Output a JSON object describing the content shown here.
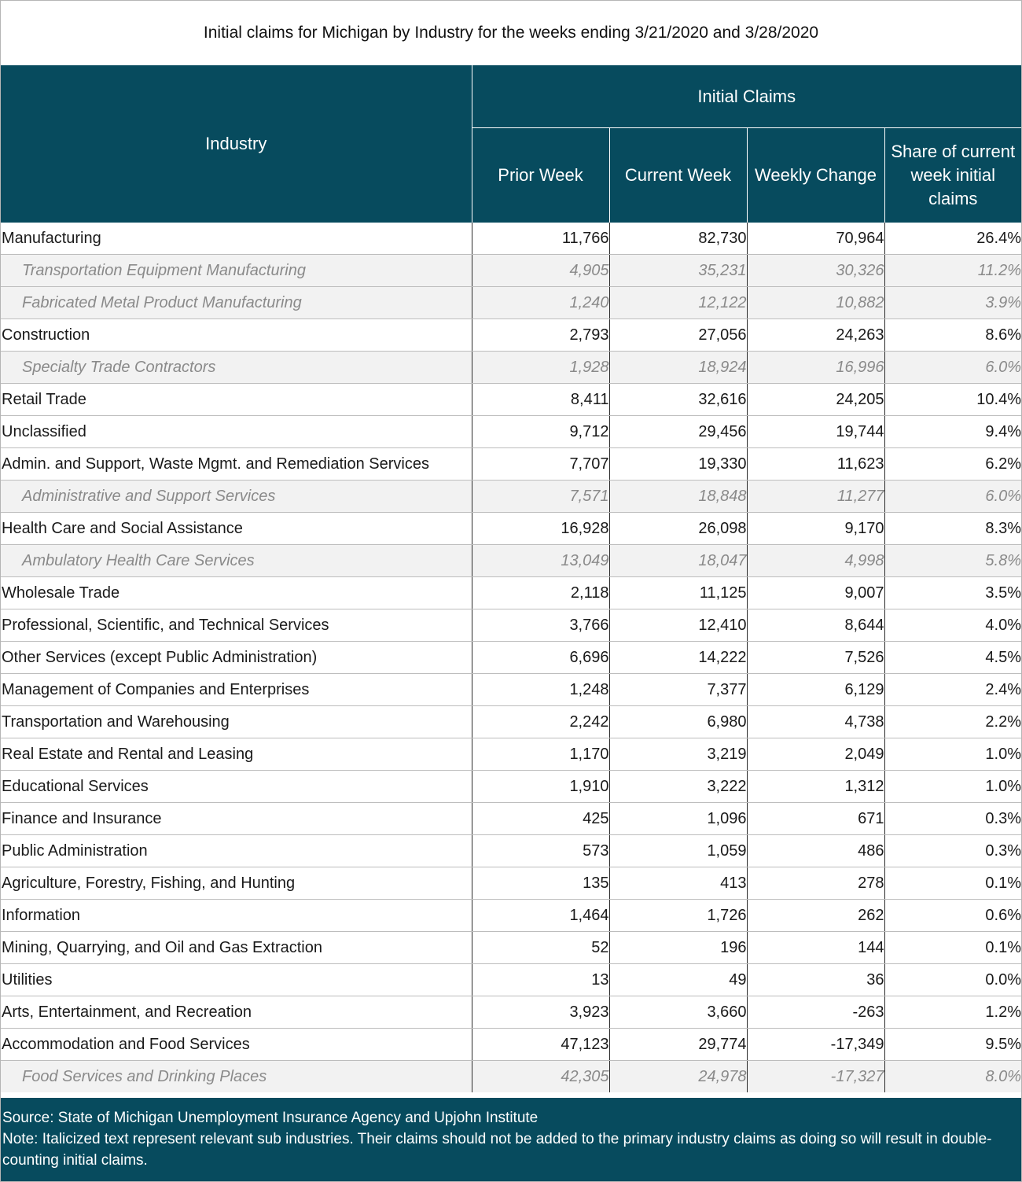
{
  "title": "Initial claims for Michigan by Industry for the weeks ending 3/21/2020 and 3/28/2020",
  "header": {
    "industry": "Industry",
    "group": "Initial Claims",
    "prior_week": "Prior Week",
    "current_week": "Current Week",
    "weekly_change": "Weekly Change",
    "share": "Share of current week initial claims"
  },
  "colors": {
    "header_bg": "#074b5e",
    "sub_row_bg": "#f2f2f2",
    "sub_row_text": "#8a8a8a"
  },
  "rows": [
    {
      "industry": "Manufacturing",
      "prior": "11,766",
      "current": "82,730",
      "change": "70,964",
      "share": "26.4%",
      "sub": false
    },
    {
      "industry": "Transportation Equipment Manufacturing",
      "prior": "4,905",
      "current": "35,231",
      "change": "30,326",
      "share": "11.2%",
      "sub": true
    },
    {
      "industry": "Fabricated Metal Product Manufacturing",
      "prior": "1,240",
      "current": "12,122",
      "change": "10,882",
      "share": "3.9%",
      "sub": true
    },
    {
      "industry": "Construction",
      "prior": "2,793",
      "current": "27,056",
      "change": "24,263",
      "share": "8.6%",
      "sub": false
    },
    {
      "industry": "Specialty Trade Contractors",
      "prior": "1,928",
      "current": "18,924",
      "change": "16,996",
      "share": "6.0%",
      "sub": true
    },
    {
      "industry": "Retail Trade",
      "prior": "8,411",
      "current": "32,616",
      "change": "24,205",
      "share": "10.4%",
      "sub": false
    },
    {
      "industry": "Unclassified",
      "prior": "9,712",
      "current": "29,456",
      "change": "19,744",
      "share": "9.4%",
      "sub": false
    },
    {
      "industry": "Admin. and Support, Waste Mgmt. and Remediation Services",
      "prior": "7,707",
      "current": "19,330",
      "change": "11,623",
      "share": "6.2%",
      "sub": false
    },
    {
      "industry": "Administrative and Support Services",
      "prior": "7,571",
      "current": "18,848",
      "change": "11,277",
      "share": "6.0%",
      "sub": true
    },
    {
      "industry": "Health Care and Social Assistance",
      "prior": "16,928",
      "current": "26,098",
      "change": "9,170",
      "share": "8.3%",
      "sub": false
    },
    {
      "industry": "Ambulatory Health Care Services",
      "prior": "13,049",
      "current": "18,047",
      "change": "4,998",
      "share": "5.8%",
      "sub": true
    },
    {
      "industry": "Wholesale Trade",
      "prior": "2,118",
      "current": "11,125",
      "change": "9,007",
      "share": "3.5%",
      "sub": false
    },
    {
      "industry": "Professional, Scientific, and Technical Services",
      "prior": "3,766",
      "current": "12,410",
      "change": "8,644",
      "share": "4.0%",
      "sub": false
    },
    {
      "industry": "Other Services (except Public Administration)",
      "prior": "6,696",
      "current": "14,222",
      "change": "7,526",
      "share": "4.5%",
      "sub": false
    },
    {
      "industry": "Management of Companies and Enterprises",
      "prior": "1,248",
      "current": "7,377",
      "change": "6,129",
      "share": "2.4%",
      "sub": false
    },
    {
      "industry": "Transportation and Warehousing",
      "prior": "2,242",
      "current": "6,980",
      "change": "4,738",
      "share": "2.2%",
      "sub": false
    },
    {
      "industry": "Real Estate and Rental and Leasing",
      "prior": "1,170",
      "current": "3,219",
      "change": "2,049",
      "share": "1.0%",
      "sub": false
    },
    {
      "industry": "Educational Services",
      "prior": "1,910",
      "current": "3,222",
      "change": "1,312",
      "share": "1.0%",
      "sub": false
    },
    {
      "industry": "Finance and Insurance",
      "prior": "425",
      "current": "1,096",
      "change": "671",
      "share": "0.3%",
      "sub": false
    },
    {
      "industry": "Public Administration",
      "prior": "573",
      "current": "1,059",
      "change": "486",
      "share": "0.3%",
      "sub": false
    },
    {
      "industry": "Agriculture, Forestry, Fishing, and Hunting",
      "prior": "135",
      "current": "413",
      "change": "278",
      "share": "0.1%",
      "sub": false
    },
    {
      "industry": "Information",
      "prior": "1,464",
      "current": "1,726",
      "change": "262",
      "share": "0.6%",
      "sub": false
    },
    {
      "industry": "Mining, Quarrying, and Oil and Gas Extraction",
      "prior": "52",
      "current": "196",
      "change": "144",
      "share": "0.1%",
      "sub": false
    },
    {
      "industry": "Utilities",
      "prior": "13",
      "current": "49",
      "change": "36",
      "share": "0.0%",
      "sub": false
    },
    {
      "industry": "Arts, Entertainment, and Recreation",
      "prior": "3,923",
      "current": "3,660",
      "change": "-263",
      "share": "1.2%",
      "sub": false
    },
    {
      "industry": "Accommodation and Food Services",
      "prior": "47,123",
      "current": "29,774",
      "change": "-17,349",
      "share": "9.5%",
      "sub": false
    },
    {
      "industry": "Food Services and Drinking Places",
      "prior": "42,305",
      "current": "24,978",
      "change": "-17,327",
      "share": "8.0%",
      "sub": true
    }
  ],
  "footer": {
    "source": "Source: State of Michigan Unemployment Insurance Agency and Upjohn Institute",
    "note": "Note: Italicized text represent relevant sub industries. Their claims should not be added to the primary industry claims as doing so will result in double-counting initial claims."
  }
}
